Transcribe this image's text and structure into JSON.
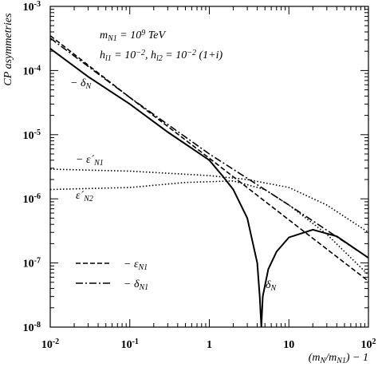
{
  "chart_data": {
    "type": "line",
    "log_x": true,
    "log_y": true,
    "xlim": [
      0.01,
      100
    ],
    "ylim": [
      1e-08,
      0.001
    ],
    "xticks": [
      {
        "value": 0.01,
        "label": "10",
        "exponent": "-2"
      },
      {
        "value": 0.1,
        "label": "10",
        "exponent": "-1"
      },
      1,
      10,
      {
        "value": 100,
        "label": "10",
        "exponent": "2"
      }
    ],
    "yticks": [
      {
        "value": 1e-08,
        "label": "10",
        "exponent": "-8"
      },
      {
        "value": 1e-07,
        "label": "10",
        "exponent": "-7"
      },
      {
        "value": 1e-06,
        "label": "10",
        "exponent": "-6"
      },
      {
        "value": 1e-05,
        "label": "10",
        "exponent": "-5"
      },
      {
        "value": 0.0001,
        "label": "10",
        "exponent": "-4"
      },
      {
        "value": 0.001,
        "label": "10",
        "exponent": "-3"
      }
    ],
    "ylabel": "CP asymmetries",
    "xlabel": [
      {
        "t": "(m"
      },
      {
        "t": "N",
        "s": "sub"
      },
      {
        "t": "/m"
      },
      {
        "t": "N1",
        "s": "sub"
      },
      {
        "t": ") − 1"
      }
    ],
    "annotations": [
      [
        {
          "t": "m"
        },
        {
          "t": "N1",
          "s": "sub"
        },
        {
          "t": " = 10"
        },
        {
          "t": "9",
          "s": "sup"
        },
        {
          "t": " TeV"
        }
      ],
      [
        {
          "t": "h"
        },
        {
          "t": "l1",
          "s": "sub"
        },
        {
          "t": " = 10"
        },
        {
          "t": "−2",
          "s": "sup"
        },
        {
          "t": ",   h"
        },
        {
          "t": "l2",
          "s": "sub"
        },
        {
          "t": " = 10"
        },
        {
          "t": "−2",
          "s": "sup"
        },
        {
          "t": " (1+i)"
        }
      ],
      [
        {
          "t": "− δ"
        },
        {
          "t": "N",
          "s": "sub"
        }
      ],
      [
        {
          "t": "− ε´"
        },
        {
          "t": "N1",
          "s": "sub"
        }
      ],
      [
        {
          "t": "ε´"
        },
        {
          "t": "N2",
          "s": "sub"
        }
      ],
      [
        {
          "t": "δ"
        },
        {
          "t": "N",
          "s": "sub"
        }
      ]
    ],
    "series": [
      {
        "style": "solid",
        "color": "#000000",
        "x": [
          0.01,
          0.03,
          0.1,
          0.3,
          1,
          1.5,
          2,
          3,
          4,
          4.3,
          4.5,
          4.7,
          5.5,
          7,
          10,
          20,
          40,
          100
        ],
        "values": [
          0.00022,
          8e-05,
          3e-05,
          1.1e-05,
          4e-06,
          2.2e-06,
          1.4e-06,
          5e-07,
          1e-07,
          3e-08,
          1e-08,
          3e-08,
          8e-08,
          1.5e-07,
          2.5e-07,
          3.3e-07,
          2.6e-07,
          1.2e-07
        ]
      },
      {
        "name": [
          {
            "t": "− ε"
          },
          {
            "t": "N1",
            "s": "sub"
          }
        ],
        "style": "dashed",
        "color": "#000000",
        "x": [
          0.01,
          0.1,
          1,
          10,
          100
        ],
        "values": [
          0.00035,
          3.8e-05,
          4.3e-06,
          4.7e-07,
          5.2e-08
        ]
      },
      {
        "name": [
          {
            "t": "− δ"
          },
          {
            "t": "N1",
            "s": "sub"
          }
        ],
        "style": "dashdot",
        "color": "#000000",
        "x": [
          0.01,
          0.1,
          1,
          10,
          100
        ],
        "values": [
          0.00032,
          3.8e-05,
          5e-06,
          8e-07,
          1.2e-07
        ]
      },
      {
        "style": "dotted",
        "color": "#000000",
        "x": [
          0.01,
          0.1,
          1,
          3,
          10,
          30,
          100
        ],
        "values": [
          2.9e-06,
          2.7e-06,
          2.3e-06,
          2e-06,
          1.5e-06,
          8e-07,
          3e-07
        ]
      },
      {
        "style": "dotted",
        "color": "#000000",
        "x": [
          0.01,
          0.1,
          0.5,
          2,
          5,
          10,
          30,
          100
        ],
        "values": [
          1.4e-06,
          1.5e-06,
          1.8e-06,
          1.9e-06,
          1.4e-06,
          8e-07,
          2.8e-07,
          6.5e-08
        ]
      }
    ]
  }
}
